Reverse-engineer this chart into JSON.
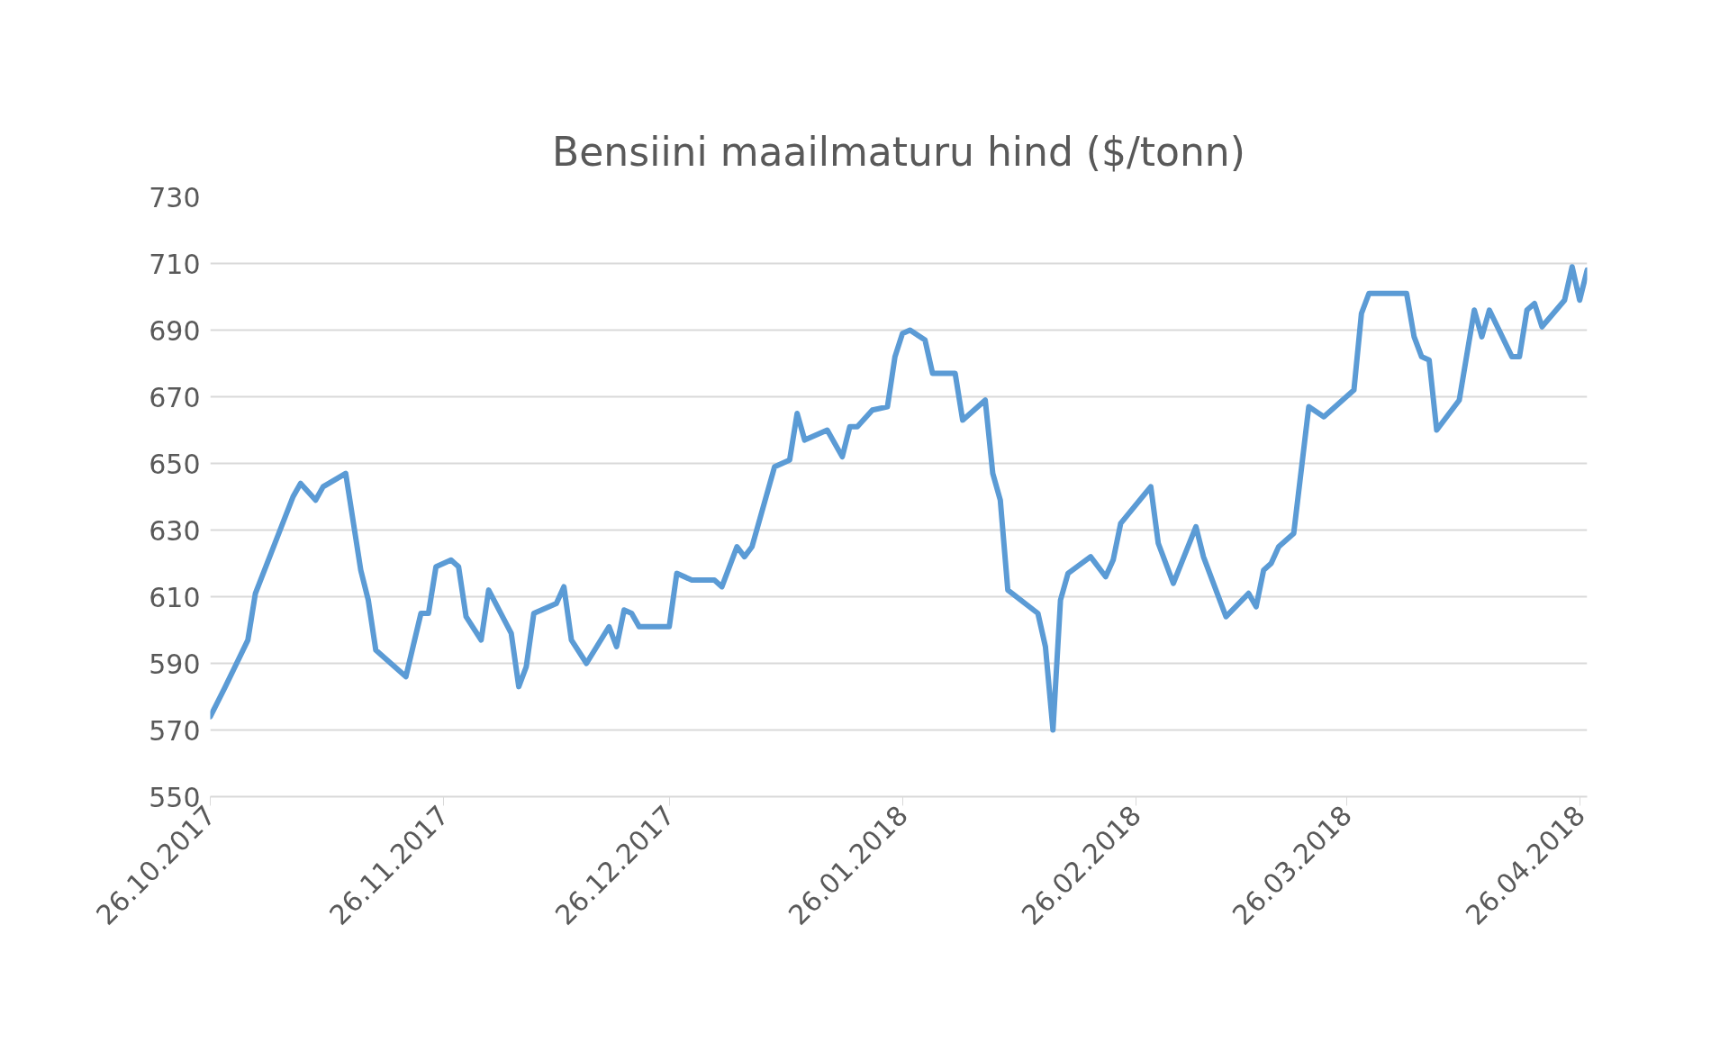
{
  "chart_data": {
    "type": "line",
    "title": "Bensiini maailmaturu hind ($/tonn)",
    "x": [
      "2017-10-26",
      "2017-10-28",
      "2017-10-31",
      "2017-11-01",
      "2017-11-06",
      "2017-11-07",
      "2017-11-09",
      "2017-11-10",
      "2017-11-13",
      "2017-11-15",
      "2017-11-16",
      "2017-11-17",
      "2017-11-21",
      "2017-11-23",
      "2017-11-24",
      "2017-11-25",
      "2017-11-27",
      "2017-11-28",
      "2017-11-29",
      "2017-12-01",
      "2017-12-02",
      "2017-12-05",
      "2017-12-06",
      "2017-12-07",
      "2017-12-08",
      "2017-12-11",
      "2017-12-12",
      "2017-12-13",
      "2017-12-15",
      "2017-12-18",
      "2017-12-19",
      "2017-12-20",
      "2017-12-21",
      "2017-12-22",
      "2017-12-26",
      "2017-12-27",
      "2017-12-29",
      "2018-01-01",
      "2018-01-02",
      "2018-01-04",
      "2018-01-05",
      "2018-01-06",
      "2018-01-09",
      "2018-01-11",
      "2018-01-12",
      "2018-01-13",
      "2018-01-16",
      "2018-01-18",
      "2018-01-19",
      "2018-01-20",
      "2018-01-22",
      "2018-01-24",
      "2018-01-25",
      "2018-01-26",
      "2018-01-27",
      "2018-01-29",
      "2018-01-30",
      "2018-02-02",
      "2018-02-03",
      "2018-02-06",
      "2018-02-07",
      "2018-02-08",
      "2018-02-09",
      "2018-02-13",
      "2018-02-14",
      "2018-02-15",
      "2018-02-16",
      "2018-02-17",
      "2018-02-20",
      "2018-02-22",
      "2018-02-23",
      "2018-02-24",
      "2018-02-28",
      "2018-03-01",
      "2018-03-03",
      "2018-03-06",
      "2018-03-07",
      "2018-03-10",
      "2018-03-13",
      "2018-03-14",
      "2018-03-15",
      "2018-03-16",
      "2018-03-17",
      "2018-03-19",
      "2018-03-21",
      "2018-03-23",
      "2018-03-27",
      "2018-03-28",
      "2018-03-29",
      "2018-04-03",
      "2018-04-04",
      "2018-04-05",
      "2018-04-06",
      "2018-04-07",
      "2018-04-10",
      "2018-04-12",
      "2018-04-13",
      "2018-04-14",
      "2018-04-17",
      "2018-04-18",
      "2018-04-19",
      "2018-04-20",
      "2018-04-21",
      "2018-04-24",
      "2018-04-25",
      "2018-04-26",
      "2018-04-27"
    ],
    "series": [
      {
        "color": "#5b9bd5",
        "values": [
          574,
          583,
          597,
          611,
          640,
          644,
          639,
          643,
          647,
          618,
          609,
          594,
          586,
          605,
          605,
          619,
          621,
          619,
          604,
          597,
          612,
          599,
          583,
          589,
          605,
          608,
          613,
          597,
          590,
          601,
          595,
          606,
          605,
          601,
          601,
          617,
          615,
          615,
          613,
          625,
          622,
          625,
          649,
          651,
          665,
          657,
          660,
          652,
          661,
          661,
          666,
          667,
          682,
          689,
          690,
          687,
          677,
          677,
          663,
          669,
          647,
          639,
          612,
          605,
          595,
          570,
          609,
          617,
          622,
          616,
          621,
          632,
          643,
          626,
          614,
          631,
          622,
          604,
          611,
          607,
          618,
          620,
          625,
          629,
          667,
          664,
          672,
          695,
          701,
          701,
          688,
          682,
          681,
          660,
          669,
          696,
          688,
          696,
          682,
          682,
          696,
          698,
          691,
          699,
          709,
          699,
          708
        ]
      }
    ],
    "xlim": [
      "2017-10-26",
      "2018-04-27"
    ],
    "xticks": [
      {
        "value": "2017-10-26",
        "label": "26.10.2017"
      },
      {
        "value": "2017-11-26",
        "label": "26.11.2017"
      },
      {
        "value": "2017-12-26",
        "label": "26.12.2017"
      },
      {
        "value": "2018-01-26",
        "label": "26.01.2018"
      },
      {
        "value": "2018-02-26",
        "label": "26.02.2018"
      },
      {
        "value": "2018-03-26",
        "label": "26.03.2018"
      },
      {
        "value": "2018-04-26",
        "label": "26.04.2018"
      }
    ],
    "ylim": [
      550,
      730
    ],
    "yticks": [
      550,
      570,
      590,
      610,
      630,
      650,
      670,
      690,
      710,
      730
    ],
    "grid": "y",
    "marker": "none",
    "line_style": "solid"
  }
}
